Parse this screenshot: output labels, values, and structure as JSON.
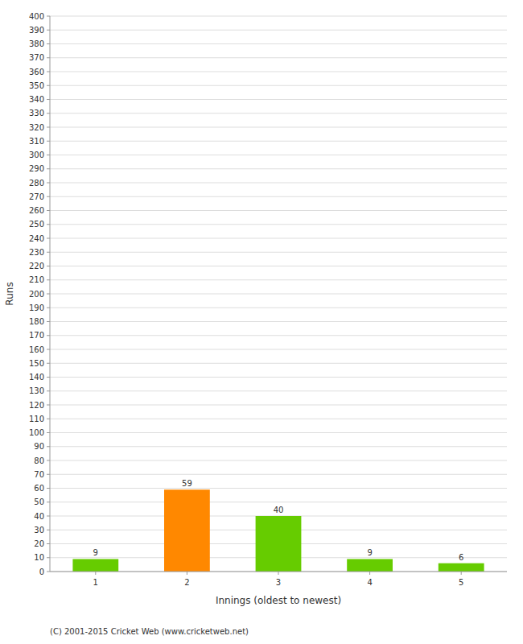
{
  "chart_data": {
    "type": "bar",
    "categories": [
      "1",
      "2",
      "3",
      "4",
      "5"
    ],
    "values": [
      9,
      59,
      40,
      9,
      6
    ],
    "colors": [
      "#66cc00",
      "#ff8800",
      "#66cc00",
      "#66cc00",
      "#66cc00"
    ],
    "data_labels": true,
    "x_label": "Innings (oldest to newest)",
    "y_label": "Runs",
    "annotations": [
      "(C) 2001-2015 Cricket Web (www.cricketweb.net)"
    ],
    "ylim": [
      0,
      400
    ],
    "yticks": [
      0,
      10,
      20,
      30,
      40,
      50,
      60,
      70,
      80,
      90,
      100,
      110,
      120,
      130,
      140,
      150,
      160,
      170,
      180,
      190,
      200,
      210,
      220,
      230,
      240,
      250,
      260,
      270,
      280,
      290,
      300,
      310,
      320,
      330,
      340,
      350,
      360,
      370,
      380,
      390,
      400
    ],
    "grid": true
  }
}
